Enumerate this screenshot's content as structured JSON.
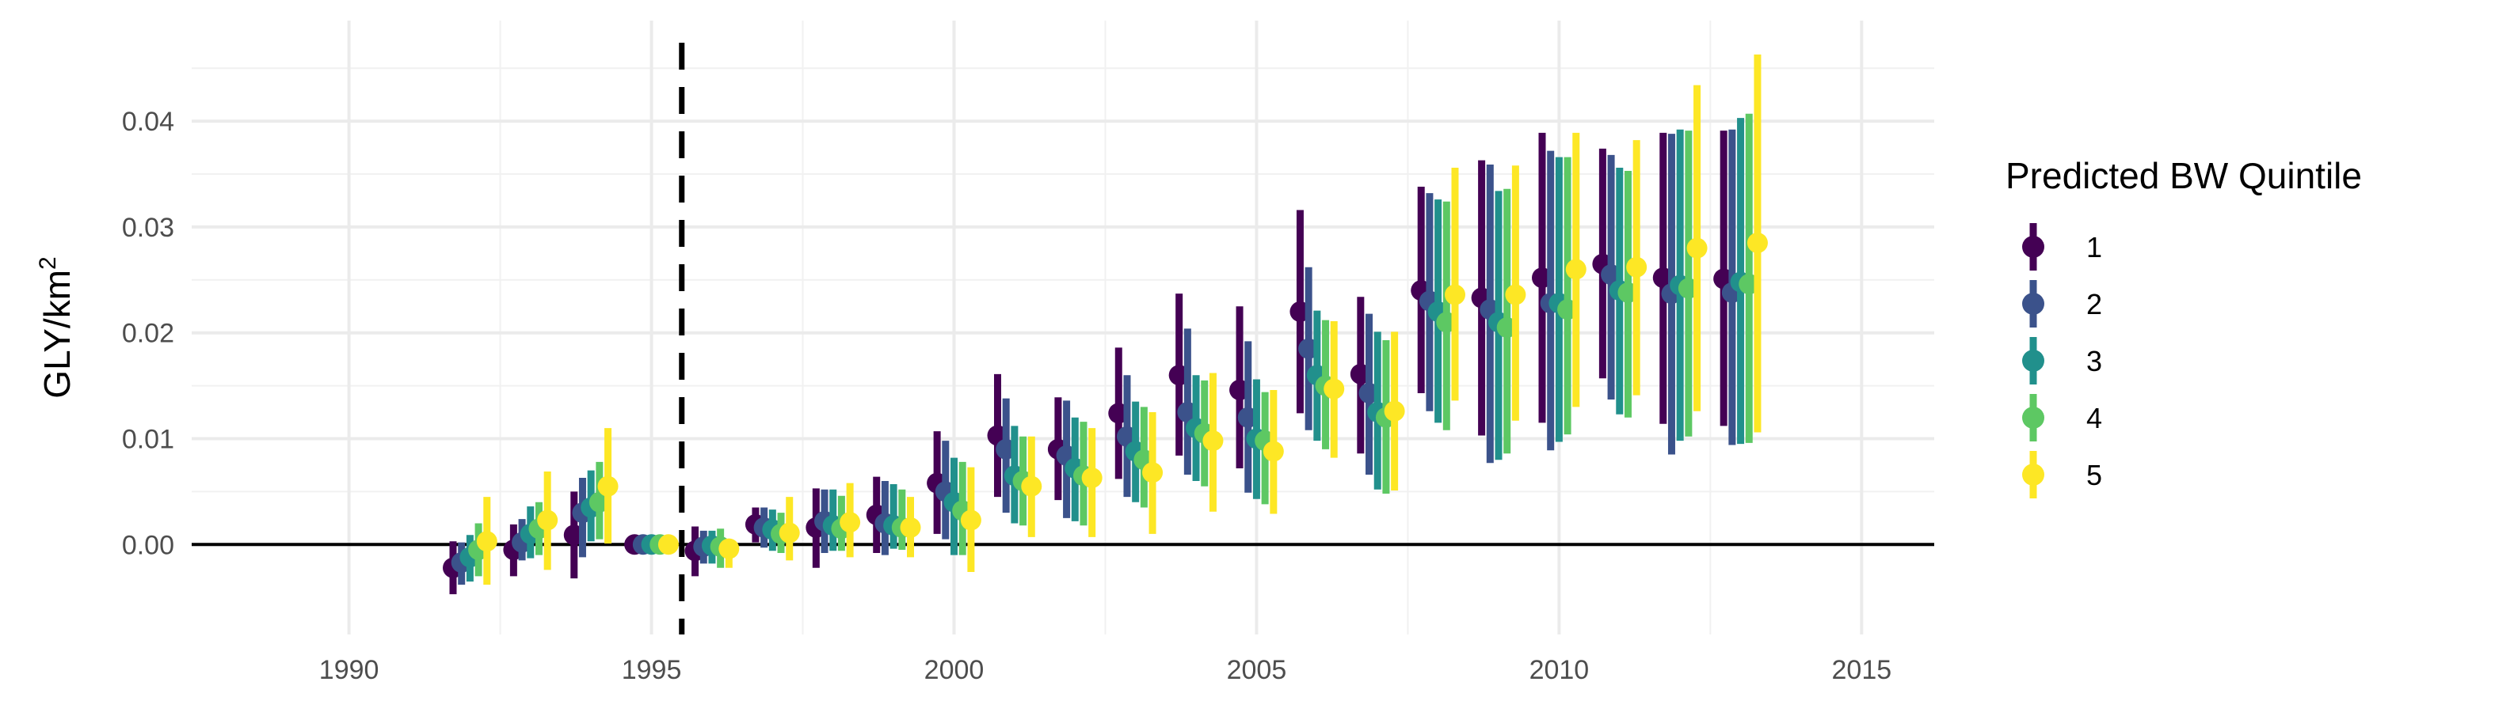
{
  "chart_data": {
    "type": "scatter",
    "subtype": "point-range (estimate with interval)",
    "xlabel": "",
    "ylabel": "GLY/km",
    "ylabel_superscript": "2",
    "xlim": [
      1987.4,
      2016.2
    ],
    "ylim": [
      -0.0085,
      0.0495
    ],
    "x_ticks": [
      1990,
      1995,
      2000,
      2005,
      2010,
      2015
    ],
    "x_tick_labels": [
      "1990",
      "1995",
      "2000",
      "2005",
      "2010",
      "2015"
    ],
    "y_ticks": [
      0.0,
      0.01,
      0.02,
      0.03,
      0.04
    ],
    "y_tick_labels": [
      "0.00",
      "0.01",
      "0.02",
      "0.03",
      "0.04"
    ],
    "grid": true,
    "reference_hline_y": 0,
    "reference_vline_x": 1995.5,
    "legend": {
      "title": "Predicted BW Quintile",
      "position": "right",
      "entries": [
        "1",
        "2",
        "3",
        "4",
        "5"
      ]
    },
    "colors": [
      "#440154",
      "#3b528b",
      "#21908c",
      "#5dc863",
      "#fde725"
    ],
    "years": [
      1992,
      1993,
      1994,
      1995,
      1996,
      1997,
      1998,
      1999,
      2000,
      2001,
      2002,
      2003,
      2004,
      2005,
      2006,
      2007,
      2008,
      2009,
      2010,
      2011,
      2012,
      2013
    ],
    "series": [
      {
        "name": "1",
        "estimate": [
          -0.0022,
          -0.0005,
          0.0009,
          0.0,
          -0.0006,
          0.0019,
          0.0016,
          0.0028,
          0.0058,
          0.0103,
          0.009,
          0.0124,
          0.016,
          0.0146,
          0.022,
          0.0161,
          0.024,
          0.0233,
          0.0252,
          0.0265,
          0.0252,
          0.0251
        ],
        "low": [
          -0.0047,
          -0.003,
          -0.0032,
          0.0,
          -0.003,
          0.0002,
          -0.0022,
          -0.0008,
          0.001,
          0.0045,
          0.0042,
          0.0062,
          0.0084,
          0.0072,
          0.0124,
          0.0086,
          0.0143,
          0.0103,
          0.0115,
          0.0157,
          0.0114,
          0.0112
        ],
        "high": [
          0.0003,
          0.0019,
          0.005,
          0.0,
          0.0017,
          0.0035,
          0.0053,
          0.0064,
          0.0107,
          0.0161,
          0.0139,
          0.0186,
          0.0237,
          0.0225,
          0.0316,
          0.0234,
          0.0338,
          0.0363,
          0.0389,
          0.0374,
          0.0389,
          0.0391
        ]
      },
      {
        "name": "2",
        "estimate": [
          -0.0017,
          0.0002,
          0.003,
          0.0,
          -0.0002,
          0.0016,
          0.0022,
          0.002,
          0.005,
          0.009,
          0.0084,
          0.0102,
          0.0125,
          0.012,
          0.0185,
          0.0143,
          0.023,
          0.0222,
          0.0228,
          0.0255,
          0.0237,
          0.0238
        ],
        "low": [
          -0.0038,
          -0.0015,
          -0.0012,
          0.0,
          -0.0018,
          -0.0003,
          -0.0008,
          -0.001,
          0.0005,
          0.003,
          0.0025,
          0.0045,
          0.0066,
          0.0049,
          0.0108,
          0.0066,
          0.0126,
          0.0077,
          0.0089,
          0.0137,
          0.0085,
          0.0094
        ],
        "high": [
          0.0002,
          0.0024,
          0.0063,
          0.0,
          0.0013,
          0.0035,
          0.0052,
          0.006,
          0.0098,
          0.0138,
          0.0136,
          0.016,
          0.0204,
          0.0192,
          0.0262,
          0.0218,
          0.0332,
          0.0359,
          0.0372,
          0.0368,
          0.0388,
          0.0392
        ]
      },
      {
        "name": "3",
        "estimate": [
          -0.0012,
          0.001,
          0.0035,
          0.0,
          -0.0001,
          0.0014,
          0.0018,
          0.0018,
          0.004,
          0.0065,
          0.0072,
          0.0088,
          0.011,
          0.01,
          0.016,
          0.0125,
          0.022,
          0.021,
          0.0228,
          0.024,
          0.0245,
          0.0248
        ],
        "low": [
          -0.0035,
          -0.0013,
          0.0003,
          0.0,
          -0.0018,
          -0.0006,
          -0.0006,
          -0.0004,
          -0.001,
          0.002,
          0.0022,
          0.004,
          0.006,
          0.0043,
          0.0098,
          0.0052,
          0.0115,
          0.008,
          0.0097,
          0.0123,
          0.0098,
          0.0095
        ],
        "high": [
          0.0009,
          0.0036,
          0.007,
          0.0,
          0.0013,
          0.0033,
          0.0052,
          0.0057,
          0.0082,
          0.0112,
          0.012,
          0.0135,
          0.016,
          0.0156,
          0.0221,
          0.0201,
          0.0326,
          0.0334,
          0.0366,
          0.0356,
          0.0392,
          0.0403
        ]
      },
      {
        "name": "4",
        "estimate": [
          -0.0005,
          0.0015,
          0.004,
          0.0,
          -0.0002,
          0.001,
          0.0015,
          0.0016,
          0.0032,
          0.006,
          0.0065,
          0.008,
          0.0105,
          0.0098,
          0.015,
          0.012,
          0.021,
          0.0205,
          0.0222,
          0.0238,
          0.0242,
          0.0246
        ],
        "low": [
          -0.003,
          -0.001,
          0.0005,
          0.0,
          -0.0022,
          -0.0008,
          -0.0006,
          -0.0005,
          -0.001,
          0.0018,
          0.0018,
          0.0035,
          0.0055,
          0.0038,
          0.009,
          0.0048,
          0.0108,
          0.0086,
          0.0104,
          0.012,
          0.0102,
          0.0096
        ],
        "high": [
          0.002,
          0.004,
          0.0078,
          0.0,
          0.0015,
          0.003,
          0.0046,
          0.0052,
          0.0078,
          0.0102,
          0.0116,
          0.013,
          0.0155,
          0.0144,
          0.0212,
          0.0193,
          0.0324,
          0.0336,
          0.0366,
          0.0353,
          0.0391,
          0.0407
        ]
      },
      {
        "name": "5",
        "estimate": [
          0.0003,
          0.0023,
          0.0055,
          0.0,
          -0.0004,
          0.0011,
          0.0021,
          0.0016,
          0.0023,
          0.0055,
          0.0063,
          0.0068,
          0.0098,
          0.0088,
          0.0147,
          0.0126,
          0.0236,
          0.0236,
          0.026,
          0.0262,
          0.028,
          0.0285
        ],
        "low": [
          -0.0038,
          -0.0024,
          0.0001,
          0.0,
          -0.0022,
          -0.0015,
          -0.0012,
          -0.0012,
          -0.0026,
          0.0007,
          0.0007,
          0.001,
          0.0031,
          0.0029,
          0.0082,
          0.0051,
          0.0136,
          0.0117,
          0.013,
          0.0141,
          0.0126,
          0.0106
        ],
        "high": [
          0.0045,
          0.0069,
          0.011,
          0.0,
          0.0004,
          0.0045,
          0.0058,
          0.0045,
          0.0073,
          0.0102,
          0.011,
          0.0125,
          0.0162,
          0.0146,
          0.0211,
          0.0201,
          0.0356,
          0.0358,
          0.0389,
          0.0382,
          0.0434,
          0.0463
        ]
      }
    ]
  }
}
